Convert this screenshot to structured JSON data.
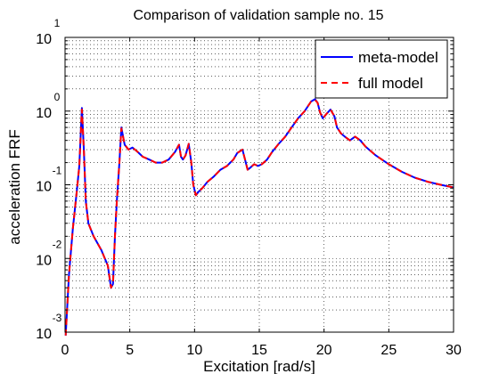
{
  "chart_data": {
    "type": "line",
    "title": "Comparison of validation sample no. 15",
    "xlabel": "Excitation [rad/s]",
    "ylabel": "acceleration FRF",
    "xlim": [
      0,
      30
    ],
    "ylim": [
      0.001,
      10
    ],
    "yscale": "log",
    "xticks": [
      0,
      5,
      10,
      15,
      20,
      25,
      30
    ],
    "xtick_labels": [
      "0",
      "5",
      "10",
      "15",
      "20",
      "25",
      "30"
    ],
    "yticks": [
      10,
      1,
      0.1,
      0.01,
      0.001
    ],
    "ytick_labels": [
      {
        "base": "10",
        "exp": "1"
      },
      {
        "base": "10",
        "exp": "0"
      },
      {
        "base": "10",
        "exp": "-1"
      },
      {
        "base": "10",
        "exp": "-2"
      },
      {
        "base": "10",
        "exp": "-3"
      }
    ],
    "grid": true,
    "legend_position": "top-right",
    "x": [
      0.05,
      0.3,
      0.6,
      0.9,
      1.1,
      1.3,
      1.45,
      1.6,
      1.8,
      2.2,
      2.8,
      3.3,
      3.55,
      3.7,
      3.85,
      4.0,
      4.2,
      4.35,
      4.6,
      4.9,
      5.2,
      5.6,
      6.0,
      6.5,
      7.0,
      7.5,
      8.0,
      8.5,
      8.8,
      8.95,
      9.1,
      9.3,
      9.55,
      9.75,
      9.9,
      10.1,
      10.3,
      10.6,
      11.0,
      11.5,
      12.0,
      12.5,
      13.0,
      13.3,
      13.7,
      13.9,
      14.1,
      14.3,
      14.6,
      14.9,
      15.2,
      15.6,
      16.0,
      16.5,
      17.0,
      17.5,
      18.0,
      18.5,
      19.0,
      19.3,
      19.5,
      19.7,
      19.9,
      20.2,
      20.5,
      20.8,
      21.0,
      21.3,
      21.6,
      22.0,
      22.4,
      22.8,
      23.2,
      24.0,
      25.0,
      26.0,
      27.0,
      28.0,
      29.0,
      30.0
    ],
    "series": [
      {
        "name": "meta-model",
        "color": "#0000ff",
        "style": "solid",
        "values": [
          0.0009,
          0.006,
          0.025,
          0.08,
          0.18,
          1.1,
          0.3,
          0.06,
          0.03,
          0.02,
          0.013,
          0.008,
          0.004,
          0.0045,
          0.02,
          0.06,
          0.2,
          0.6,
          0.35,
          0.3,
          0.32,
          0.28,
          0.24,
          0.22,
          0.2,
          0.2,
          0.22,
          0.28,
          0.35,
          0.24,
          0.22,
          0.25,
          0.36,
          0.2,
          0.1,
          0.072,
          0.08,
          0.09,
          0.11,
          0.13,
          0.16,
          0.18,
          0.22,
          0.27,
          0.3,
          0.22,
          0.16,
          0.17,
          0.19,
          0.18,
          0.19,
          0.22,
          0.28,
          0.36,
          0.45,
          0.6,
          0.8,
          1.0,
          1.35,
          1.45,
          1.3,
          0.95,
          0.8,
          0.92,
          1.05,
          0.85,
          0.6,
          0.5,
          0.45,
          0.4,
          0.45,
          0.4,
          0.33,
          0.25,
          0.19,
          0.15,
          0.125,
          0.11,
          0.1,
          0.092
        ]
      },
      {
        "name": "full model",
        "color": "#ff0000",
        "style": "dashed",
        "values": [
          0.0009,
          0.006,
          0.025,
          0.08,
          0.18,
          1.05,
          0.3,
          0.06,
          0.03,
          0.02,
          0.013,
          0.008,
          0.004,
          0.0045,
          0.02,
          0.06,
          0.2,
          0.58,
          0.35,
          0.3,
          0.32,
          0.28,
          0.24,
          0.22,
          0.2,
          0.2,
          0.22,
          0.28,
          0.35,
          0.24,
          0.22,
          0.25,
          0.36,
          0.2,
          0.1,
          0.072,
          0.08,
          0.09,
          0.11,
          0.13,
          0.16,
          0.18,
          0.22,
          0.27,
          0.3,
          0.22,
          0.16,
          0.17,
          0.19,
          0.18,
          0.19,
          0.22,
          0.28,
          0.36,
          0.45,
          0.6,
          0.8,
          1.0,
          1.35,
          1.42,
          1.3,
          0.95,
          0.8,
          0.92,
          1.05,
          0.85,
          0.6,
          0.5,
          0.45,
          0.4,
          0.45,
          0.4,
          0.33,
          0.25,
          0.19,
          0.15,
          0.125,
          0.11,
          0.1,
          0.092
        ]
      }
    ]
  }
}
